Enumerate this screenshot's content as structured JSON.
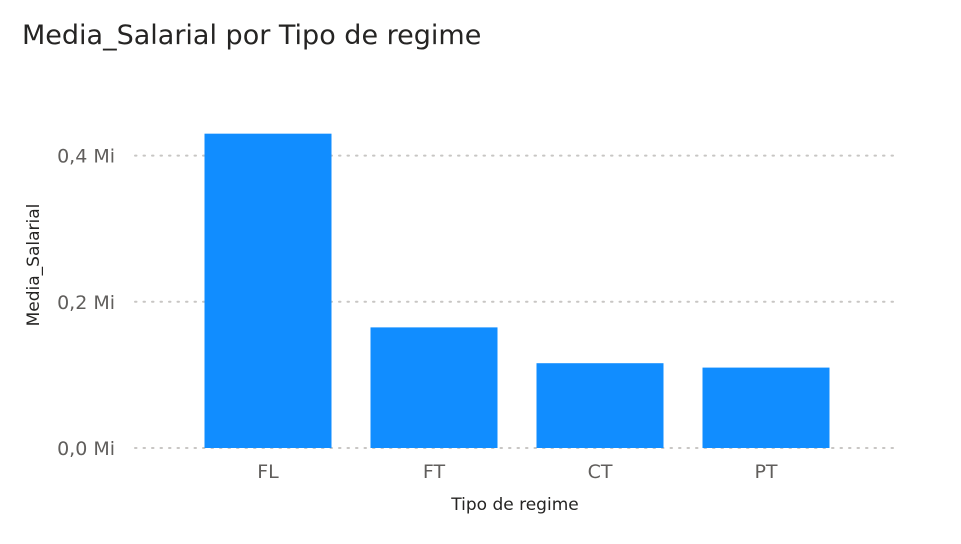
{
  "chart_data": {
    "type": "bar",
    "title": "Media_Salarial por Tipo de regime",
    "xlabel": "Tipo de regime",
    "ylabel": "Media_Salarial",
    "categories": [
      "FL",
      "FT",
      "CT",
      "PT"
    ],
    "values": [
      0.43,
      0.165,
      0.116,
      0.11
    ],
    "unit": "Mi",
    "ylim": [
      0,
      0.45
    ],
    "yticks": [
      {
        "value": 0.0,
        "label": "0,0 Mi"
      },
      {
        "value": 0.2,
        "label": "0,2 Mi"
      },
      {
        "value": 0.4,
        "label": "0,4 Mi"
      }
    ],
    "bar_color": "#118DFF",
    "gridline_color": "#C8C6C4",
    "grid": true,
    "legend": "none"
  }
}
